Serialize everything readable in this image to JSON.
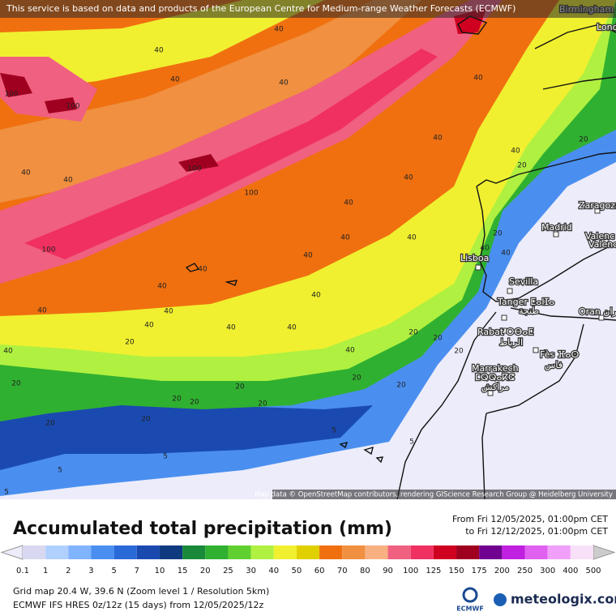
{
  "header": {
    "attribution": "This service is based on data and products of the European Centre for Medium-range Weather Forecasts (ECMWF)"
  },
  "map": {
    "cities": [
      "Birmingham",
      "Lond",
      "Zaragoza",
      "Madrid",
      "Valenc",
      "Valenc",
      "Lisboa",
      "Sevilla",
      "Tanger ⵟⴰⵏⵊⴰ",
      "طنجة",
      "Oran وهران",
      "Rabat ⵔⴱⴰⵟ",
      "الرباط",
      "Fès ⴼⴰⵙ",
      "فاس",
      "Marrakech",
      "ⵎⵕⵕⴰⴽⵛ",
      "مراكش"
    ],
    "contour_labels": [
      40,
      40,
      40,
      40,
      100,
      100,
      40,
      40,
      40,
      20,
      20,
      40,
      40,
      100,
      100,
      40,
      40,
      100,
      40,
      40,
      40,
      40,
      40,
      20,
      40,
      40,
      40,
      40,
      40,
      40,
      40,
      40,
      40,
      20,
      40,
      20,
      20,
      20,
      20,
      20,
      20,
      20,
      20,
      20,
      20,
      20,
      20,
      5,
      5,
      5,
      5,
      5
    ],
    "credit": "Map data © OpenStreetMap contributors, rendering GIScience Research Group @ Heidelberg University"
  },
  "legend": {
    "title": "Accumulated total precipitation (mm)",
    "from": "From Fri 12/05/2025, 01:00pm CET",
    "to": "to Fri 12/12/2025, 01:00pm CET",
    "ticks": [
      0.1,
      1,
      2,
      3,
      5,
      7,
      10,
      15,
      20,
      25,
      30,
      40,
      50,
      60,
      70,
      80,
      90,
      100,
      125,
      150,
      175,
      200,
      250,
      300,
      400,
      500
    ],
    "colors": [
      "#d8d8f0",
      "#b0d0ff",
      "#80b4ff",
      "#4a8ff0",
      "#2a6ad8",
      "#1a4ab0",
      "#103a80",
      "#1a8a3a",
      "#30b030",
      "#60d030",
      "#b0f040",
      "#f0f030",
      "#e0d000",
      "#f07010",
      "#f09040",
      "#f8b080",
      "#f06080",
      "#f03060",
      "#d00020",
      "#a00020",
      "#700090",
      "#c020e0",
      "#e060f0",
      "#f0a0f8",
      "#f8e0f8"
    ],
    "under_color": "#ececfa",
    "over_color": "#cccccc"
  },
  "footer": {
    "grid": "Grid map 20.4 W, 39.6 N (Zoom level 1 / Resolution 5km)",
    "model": "ECMWF IFS HRES 0z/12z (15 days) from 12/05/2025/12z",
    "ecmwf_logo": "ECMWF",
    "brand": "meteologix.com"
  }
}
